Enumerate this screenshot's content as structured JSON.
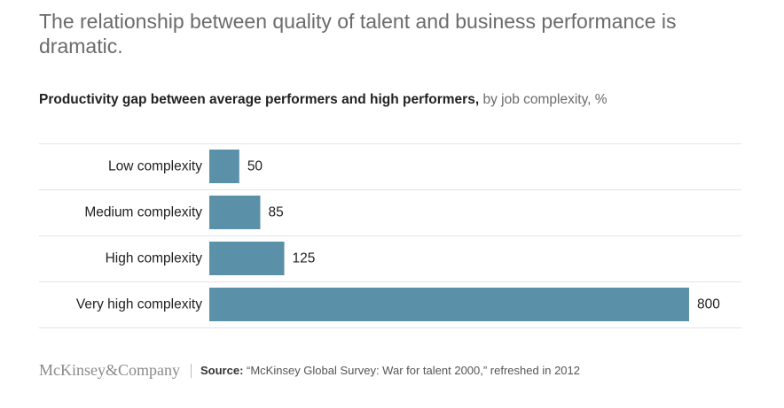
{
  "headline": "The relationship between quality of talent and business performance is dramatic.",
  "subtitle": {
    "bold": "Productivity gap between average performers and high performers,",
    "light": " by job complexity, %"
  },
  "footer": {
    "logo": "McKinsey&Company",
    "source_label": "Source:",
    "source_text": " “McKinsey Global Survey: War for talent 2000,” refreshed in 2012"
  },
  "colors": {
    "bar": "#5a91a8",
    "gridline": "#e4e4e4",
    "label": "#222222"
  },
  "chart_data": {
    "type": "bar",
    "orientation": "horizontal",
    "title": "Productivity gap between average performers and high performers, by job complexity, %",
    "xlabel": "",
    "ylabel": "",
    "categories": [
      "Low complexity",
      "Medium complexity",
      "High complexity",
      "Very high complexity"
    ],
    "values": [
      50,
      85,
      125,
      800
    ],
    "data_labels": [
      "50",
      "85",
      "125",
      "800"
    ],
    "xlim": [
      0,
      800
    ],
    "grid": false
  }
}
